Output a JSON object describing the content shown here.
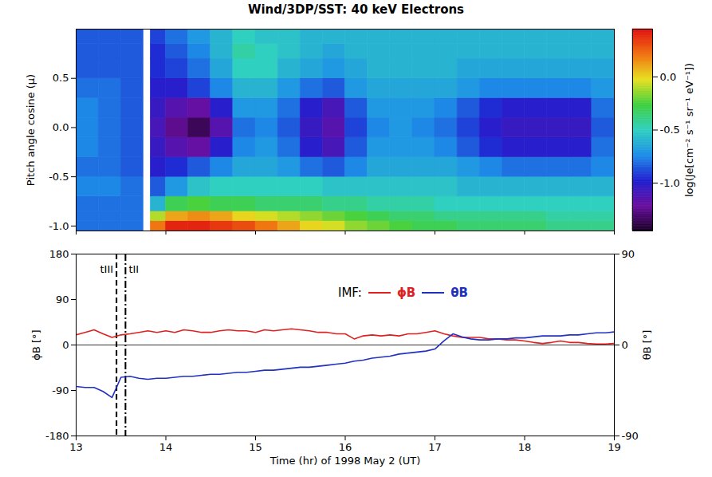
{
  "chart_data": [
    {
      "type": "heatmap",
      "title": "Wind/3DP/SST: 40 keV Electrons",
      "y_label": "Pitch angle cosine (μ)",
      "xlim": [
        13,
        19
      ],
      "xticks": [
        13,
        14,
        15,
        16,
        17,
        18,
        19
      ],
      "ylim": [
        -1.05,
        1.0
      ],
      "yticks": [
        {
          "value": -1,
          "label": "-1.0"
        },
        {
          "value": -0.5,
          "label": "-0.5"
        },
        {
          "value": 0,
          "label": "0.0"
        },
        {
          "value": 0.5,
          "label": "0.5"
        }
      ],
      "tick_labels": "y",
      "x_edges": [
        13.0,
        13.25,
        13.5,
        13.75,
        13.83,
        14.0,
        14.25,
        14.5,
        14.75,
        15.0,
        15.25,
        15.5,
        15.75,
        16.0,
        16.25,
        16.5,
        16.75,
        17.0,
        17.25,
        17.5,
        17.75,
        18.0,
        18.25,
        18.5,
        18.75,
        19.0
      ],
      "y_edges": [
        -1.05,
        -0.95,
        -0.85,
        -0.7,
        -0.5,
        -0.3,
        -0.1,
        0.1,
        0.3,
        0.5,
        0.7,
        0.85,
        1.0
      ],
      "cells": [
        [
          -0.8,
          -0.8,
          -0.8,
          null,
          0.2,
          0.4,
          0.4,
          0.35,
          0.3,
          0.2,
          0.1,
          0.0,
          -0.05,
          -0.15,
          -0.2,
          -0.25,
          -0.3,
          -0.3,
          -0.35,
          -0.35,
          -0.35,
          -0.35,
          -0.4,
          -0.4,
          -0.4
        ],
        [
          -0.8,
          -0.8,
          -0.8,
          null,
          -0.1,
          0.1,
          0.15,
          0.1,
          0.0,
          -0.05,
          -0.1,
          -0.15,
          -0.2,
          -0.25,
          -0.3,
          -0.35,
          -0.35,
          -0.4,
          -0.4,
          -0.4,
          -0.4,
          -0.4,
          -0.45,
          -0.45,
          -0.45
        ],
        [
          -0.8,
          -0.8,
          -0.8,
          null,
          -0.6,
          -0.3,
          -0.25,
          -0.3,
          -0.3,
          -0.35,
          -0.35,
          -0.35,
          -0.4,
          -0.4,
          -0.45,
          -0.45,
          -0.45,
          -0.5,
          -0.5,
          -0.5,
          -0.5,
          -0.5,
          -0.5,
          -0.5,
          -0.5
        ],
        [
          -0.75,
          -0.75,
          -0.8,
          null,
          -0.85,
          -0.7,
          -0.55,
          -0.5,
          -0.5,
          -0.5,
          -0.5,
          -0.5,
          -0.55,
          -0.55,
          -0.55,
          -0.55,
          -0.55,
          -0.55,
          -0.6,
          -0.6,
          -0.6,
          -0.6,
          -0.6,
          -0.6,
          -0.6
        ],
        [
          -0.8,
          -0.8,
          -0.85,
          null,
          -1.0,
          -0.95,
          -0.85,
          -0.75,
          -0.65,
          -0.65,
          -0.7,
          -0.8,
          -0.85,
          -0.75,
          -0.65,
          -0.65,
          -0.65,
          -0.65,
          -0.7,
          -0.75,
          -0.8,
          -0.8,
          -0.8,
          -0.8,
          -0.75
        ],
        [
          -0.75,
          -0.8,
          -0.85,
          null,
          -1.05,
          -1.15,
          -1.2,
          -1.0,
          -0.75,
          -0.7,
          -0.8,
          -1.0,
          -1.1,
          -0.85,
          -0.7,
          -0.7,
          -0.7,
          -0.75,
          -0.85,
          -0.95,
          -1.0,
          -1.0,
          -1.0,
          -1.0,
          -0.8
        ],
        [
          -0.75,
          -0.8,
          -0.85,
          null,
          -1.1,
          -1.25,
          -1.35,
          -1.15,
          -0.8,
          -0.75,
          -0.85,
          -1.05,
          -1.15,
          -0.9,
          -0.75,
          -0.7,
          -0.75,
          -0.8,
          -0.9,
          -1.0,
          -1.05,
          -1.05,
          -1.05,
          -1.05,
          -0.85
        ],
        [
          -0.75,
          -0.8,
          -0.85,
          null,
          -1.05,
          -1.15,
          -1.2,
          -1.0,
          -0.7,
          -0.7,
          -0.8,
          -1.0,
          -1.1,
          -0.85,
          -0.7,
          -0.7,
          -0.7,
          -0.75,
          -0.85,
          -0.95,
          -1.0,
          -1.0,
          -1.0,
          -1.0,
          -0.8
        ],
        [
          -0.8,
          -0.8,
          -0.85,
          null,
          -1.0,
          -1.0,
          -0.9,
          -0.75,
          -0.6,
          -0.6,
          -0.7,
          -0.8,
          -0.85,
          -0.7,
          -0.65,
          -0.65,
          -0.65,
          -0.65,
          -0.7,
          -0.75,
          -0.75,
          -0.75,
          -0.75,
          -0.75,
          -0.7
        ],
        [
          -0.85,
          -0.85,
          -0.85,
          null,
          -0.95,
          -0.9,
          -0.8,
          -0.65,
          -0.5,
          -0.5,
          -0.6,
          -0.65,
          -0.7,
          -0.65,
          -0.6,
          -0.6,
          -0.6,
          -0.6,
          -0.65,
          -0.65,
          -0.65,
          -0.65,
          -0.65,
          -0.65,
          -0.65
        ],
        [
          -0.85,
          -0.85,
          -0.85,
          null,
          -0.95,
          -0.85,
          -0.75,
          -0.6,
          -0.45,
          -0.5,
          -0.55,
          -0.6,
          -0.65,
          -0.6,
          -0.6,
          -0.6,
          -0.6,
          -0.6,
          -0.6,
          -0.6,
          -0.6,
          -0.6,
          -0.6,
          -0.6,
          -0.6
        ],
        [
          -0.85,
          -0.85,
          -0.85,
          null,
          -0.9,
          -0.8,
          -0.7,
          -0.6,
          -0.5,
          -0.55,
          -0.55,
          -0.6,
          -0.6,
          -0.6,
          -0.6,
          -0.6,
          -0.6,
          -0.6,
          -0.6,
          -0.6,
          -0.6,
          -0.6,
          -0.6,
          -0.6,
          -0.6
        ]
      ],
      "colorbar": {
        "label": "log(Je[cm⁻² s⁻¹ sr⁻¹ eV⁻¹])",
        "range": [
          -1.45,
          0.45
        ],
        "ticks": [
          {
            "value": -1,
            "label": "-1.0"
          },
          {
            "value": -0.5,
            "label": "-0.5"
          },
          {
            "value": 0,
            "label": "0.0"
          }
        ]
      }
    },
    {
      "type": "line",
      "x_label": "Time (hr) of 1998 May 2 (UT)",
      "y_label": "ϕB [°]",
      "y2_label": "θB [°]",
      "xlim": [
        13,
        19
      ],
      "xticks": [
        13,
        14,
        15,
        16,
        17,
        18,
        19
      ],
      "ylim": [
        -180,
        180
      ],
      "yticks": [
        -180,
        -90,
        0,
        90,
        180
      ],
      "y2lim": [
        -90,
        90
      ],
      "y2ticks": [
        -90,
        0,
        90
      ],
      "legend": "top",
      "legend_title": "IMF:",
      "hlines": [
        0
      ],
      "vlines": [
        {
          "x": 13.45,
          "label": "tIII",
          "line_style": "dashed"
        },
        {
          "x": 13.55,
          "label": "tII",
          "line_style": "dashdot"
        }
      ],
      "x": [
        13.0,
        13.1,
        13.2,
        13.3,
        13.4,
        13.5,
        13.6,
        13.7,
        13.8,
        13.9,
        14.0,
        14.1,
        14.2,
        14.3,
        14.4,
        14.5,
        14.6,
        14.7,
        14.8,
        14.9,
        15.0,
        15.1,
        15.2,
        15.3,
        15.4,
        15.5,
        15.6,
        15.7,
        15.8,
        15.9,
        16.0,
        16.1,
        16.2,
        16.3,
        16.4,
        16.5,
        16.6,
        16.7,
        16.8,
        16.9,
        17.0,
        17.1,
        17.2,
        17.3,
        17.4,
        17.5,
        17.6,
        17.7,
        17.8,
        17.9,
        18.0,
        18.1,
        18.2,
        18.3,
        18.4,
        18.5,
        18.6,
        18.7,
        18.8,
        18.9,
        19.0
      ],
      "series": [
        {
          "name": "ϕB",
          "color": "#e02020",
          "values": [
            20,
            25,
            30,
            22,
            15,
            20,
            22,
            25,
            28,
            25,
            28,
            25,
            30,
            28,
            25,
            25,
            28,
            30,
            28,
            28,
            25,
            30,
            28,
            30,
            32,
            30,
            28,
            25,
            25,
            22,
            22,
            12,
            18,
            20,
            18,
            20,
            18,
            22,
            22,
            25,
            28,
            22,
            18,
            15,
            15,
            15,
            12,
            12,
            10,
            10,
            8,
            5,
            3,
            5,
            8,
            5,
            5,
            3,
            2,
            2,
            3
          ]
        },
        {
          "name": "θB",
          "color": "#2030c0",
          "axis": "y2",
          "values": [
            -41,
            -42,
            -42,
            -46,
            -52,
            -32,
            -31,
            -33,
            -34,
            -33,
            -33,
            -32,
            -31,
            -31,
            -30,
            -29,
            -29,
            -28,
            -27,
            -27,
            -26,
            -25,
            -25,
            -24,
            -23,
            -22,
            -22,
            -21,
            -20,
            -19,
            -18,
            -16,
            -15,
            -13,
            -12,
            -11,
            -9,
            -8,
            -7,
            -6,
            -4,
            4,
            11,
            8,
            6,
            5,
            5,
            6,
            6,
            7,
            7,
            8,
            9,
            9,
            9,
            10,
            10,
            11,
            12,
            12,
            13
          ]
        }
      ]
    }
  ]
}
